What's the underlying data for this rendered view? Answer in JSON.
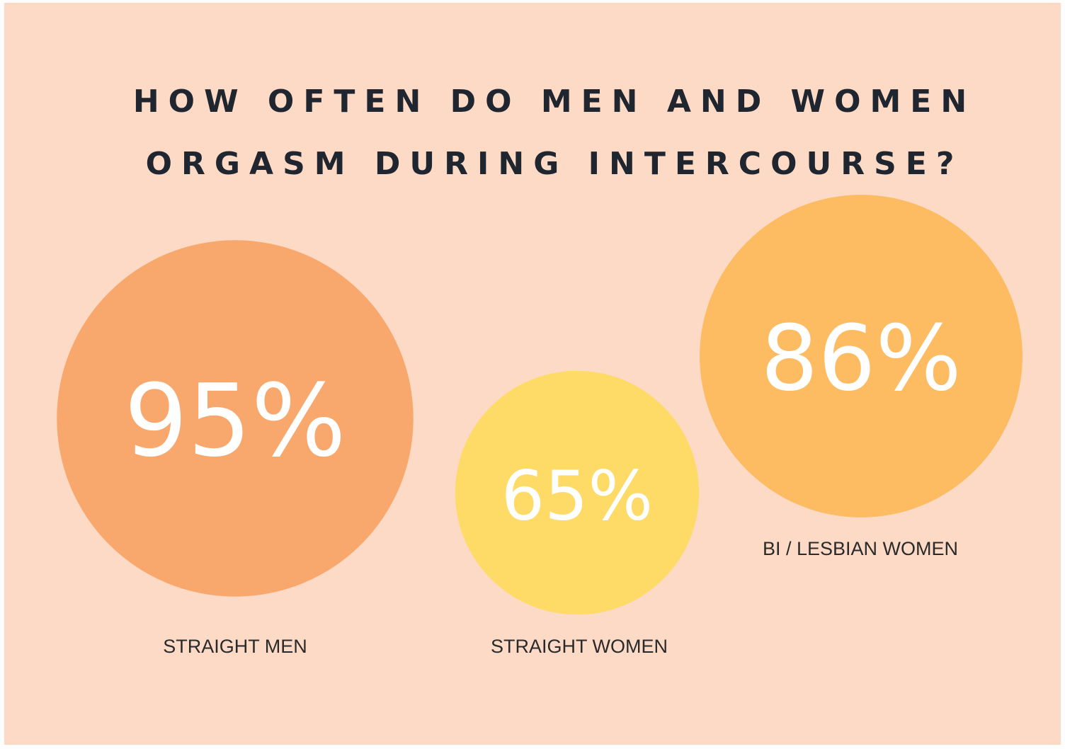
{
  "chart_data": {
    "type": "bubble",
    "title": "HOW OFTEN DO MEN AND WOMEN ORGASM DURING INTERCOURSE?",
    "categories": [
      "STRAIGHT MEN",
      "STRAIGHT WOMEN",
      "BI / LESBIAN WOMEN"
    ],
    "values": [
      95,
      65,
      86
    ],
    "value_labels": [
      "95%",
      "65%",
      "86%"
    ],
    "colors": [
      "#f9a86d",
      "#fedb66",
      "#fdbb62"
    ]
  }
}
